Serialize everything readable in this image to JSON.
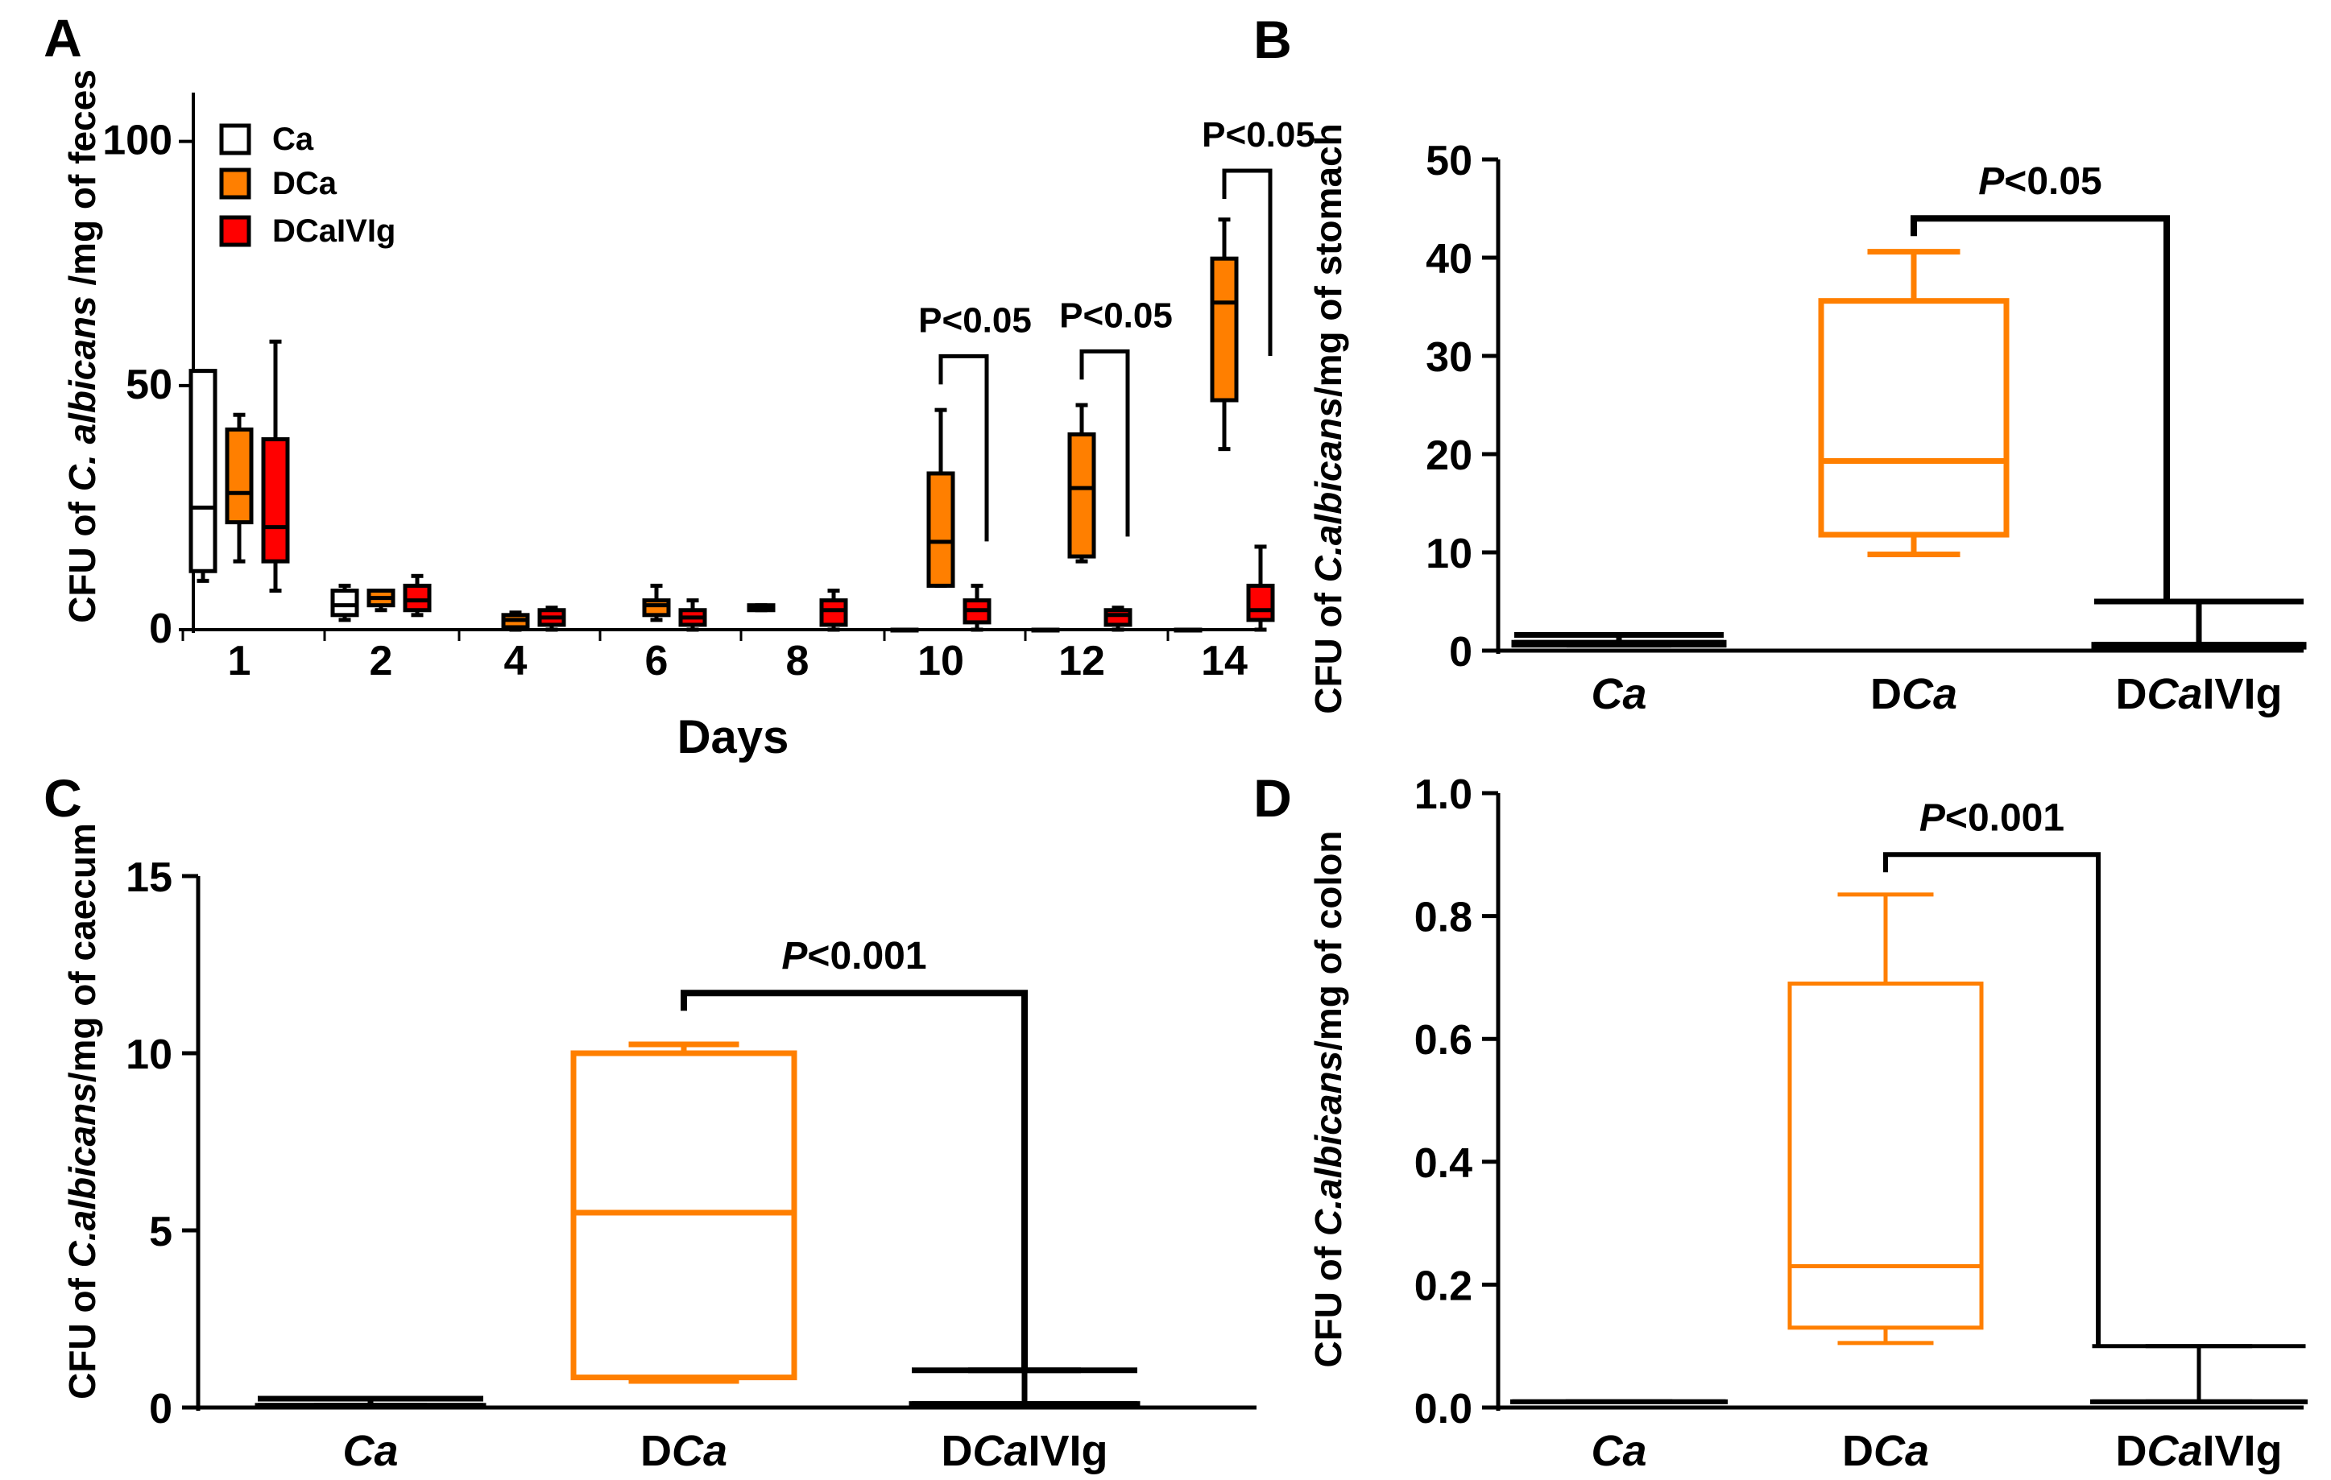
{
  "colors": {
    "ca": "#ffffff",
    "dca": "#ff7f00",
    "dcaivig": "#ff0000",
    "stroke": "#000000",
    "accent": "#ff7f00"
  },
  "chart_data": [
    {
      "panel": "A",
      "type": "box",
      "ylabel_parts": [
        "CFU of ",
        "C. albicans",
        " /mg of feces"
      ],
      "xlabel": "Days",
      "ylim": [
        0,
        110
      ],
      "yticks": [
        0,
        50,
        100
      ],
      "categories": [
        "1",
        "2",
        "4",
        "6",
        "8",
        "10",
        "12",
        "14"
      ],
      "legend": [
        "Ca",
        "DCa",
        "DCaIVIg"
      ],
      "series": [
        {
          "name": "Ca",
          "boxes": [
            {
              "min": 10,
              "q1": 12,
              "median": 25,
              "q3": 53,
              "max": 53
            },
            {
              "min": 2,
              "q1": 3,
              "median": 5,
              "q3": 8,
              "max": 9
            },
            null,
            null,
            {
              "min": 4,
              "q1": 4,
              "median": 4.5,
              "q3": 5,
              "max": 5
            },
            {
              "min": 0,
              "q1": 0,
              "median": 0,
              "q3": 0,
              "max": 0
            },
            {
              "min": 0,
              "q1": 0,
              "median": 0,
              "q3": 0,
              "max": 0
            },
            {
              "min": 0,
              "q1": 0,
              "median": 0,
              "q3": 0,
              "max": 0
            }
          ]
        },
        {
          "name": "DCa",
          "boxes": [
            {
              "min": 14,
              "q1": 22,
              "median": 28,
              "q3": 41,
              "max": 44
            },
            {
              "min": 4,
              "q1": 5,
              "median": 6.5,
              "q3": 8,
              "max": 8
            },
            {
              "min": 0,
              "q1": 0.5,
              "median": 2,
              "q3": 3,
              "max": 3.5
            },
            {
              "min": 2,
              "q1": 3,
              "median": 5,
              "q3": 6,
              "max": 9
            },
            null,
            {
              "min": 9,
              "q1": 9,
              "median": 18,
              "q3": 32,
              "max": 45
            },
            {
              "min": 14,
              "q1": 15,
              "median": 29,
              "q3": 40,
              "max": 46
            },
            {
              "min": 37,
              "q1": 47,
              "median": 67,
              "q3": 76,
              "max": 84
            }
          ]
        },
        {
          "name": "DCaIVIg",
          "boxes": [
            {
              "min": 8,
              "q1": 14,
              "median": 21,
              "q3": 39,
              "max": 59
            },
            {
              "min": 3,
              "q1": 4,
              "median": 6,
              "q3": 9,
              "max": 11
            },
            {
              "min": 0,
              "q1": 1,
              "median": 2.5,
              "q3": 4,
              "max": 4.5
            },
            {
              "min": 0,
              "q1": 1,
              "median": 2.5,
              "q3": 4,
              "max": 6
            },
            {
              "min": 0,
              "q1": 1,
              "median": 4,
              "q3": 6,
              "max": 8
            },
            {
              "min": 0,
              "q1": 1.5,
              "median": 4,
              "q3": 6,
              "max": 9
            },
            {
              "min": 0,
              "q1": 1,
              "median": 3,
              "q3": 4,
              "max": 4.5
            },
            {
              "min": 0,
              "q1": 2,
              "median": 4,
              "q3": 9,
              "max": 17
            }
          ]
        }
      ],
      "annotations": [
        {
          "text": "P<0.05",
          "day": "10",
          "y1": 56,
          "y2": 56
        },
        {
          "text": "P<0.05",
          "day": "12",
          "y1": 57,
          "y2": 57
        },
        {
          "text": "P<0.05",
          "day": "14",
          "y1": 94,
          "y2": 94
        }
      ]
    },
    {
      "panel": "B",
      "type": "box",
      "ylabel_parts": [
        "CFU of ",
        "C.albicans",
        "/mg of stomach"
      ],
      "ylim": [
        0,
        50
      ],
      "yticks": [
        0,
        10,
        20,
        30,
        40,
        50
      ],
      "categories": [
        [
          "",
          "Ca"
        ],
        [
          "D",
          "Ca"
        ],
        [
          "D",
          "Ca",
          "IVIg"
        ]
      ],
      "boxes": [
        {
          "group": "Ca",
          "min": 0.6,
          "q1": 0.6,
          "median": 0.8,
          "q3": 0.8,
          "max": 1.6
        },
        {
          "group": "DCa",
          "min": 9.8,
          "q1": 11.8,
          "median": 19.3,
          "q3": 35.6,
          "max": 40.6
        },
        {
          "group": "DCaIVIg",
          "min": 0.4,
          "q1": 0.4,
          "median": 0.6,
          "q3": 0.6,
          "max": 5
        }
      ],
      "annotation": {
        "p": "P",
        "rest": "<0.05",
        "bracket_y": 44
      }
    },
    {
      "panel": "C",
      "type": "box",
      "ylabel_parts": [
        "CFU of ",
        "C.albicans",
        "/mg of caecum"
      ],
      "ylim": [
        0,
        15
      ],
      "yticks": [
        0,
        5,
        10,
        15
      ],
      "categories": [
        [
          "",
          "Ca"
        ],
        [
          "D",
          "Ca"
        ],
        [
          "D",
          "Ca",
          "IVIg"
        ]
      ],
      "boxes": [
        {
          "group": "Ca",
          "min": 0.05,
          "q1": 0.05,
          "median": 0.05,
          "q3": 0.05,
          "max": 0.25
        },
        {
          "group": "DCa",
          "min": 0.75,
          "q1": 0.85,
          "median": 5.5,
          "q3": 10.0,
          "max": 10.25
        },
        {
          "group": "DCaIVIg",
          "min": 0.05,
          "q1": 0.05,
          "median": 0.1,
          "q3": 0.1,
          "max": 1.05
        }
      ],
      "annotation": {
        "p": "P",
        "rest": "<0.001",
        "bracket_y": 11.7
      }
    },
    {
      "panel": "D",
      "type": "box",
      "ylabel_parts": [
        "CFU of ",
        "C.albicans",
        "/mg of colon"
      ],
      "ylim": [
        0,
        1.0
      ],
      "yticks": [
        "0.0",
        "0.2",
        "0.4",
        "0.6",
        "0.8",
        "1.0"
      ],
      "categories": [
        [
          "",
          "Ca"
        ],
        [
          "D",
          "Ca"
        ],
        [
          "D",
          "Ca",
          "IVIg"
        ]
      ],
      "boxes": [
        {
          "group": "Ca",
          "min": 0.01,
          "q1": 0.01,
          "median": 0.01,
          "q3": 0.01,
          "max": 0.01
        },
        {
          "group": "DCa",
          "min": 0.105,
          "q1": 0.13,
          "median": 0.23,
          "q3": 0.69,
          "max": 0.835
        },
        {
          "group": "DCaIVIg",
          "min": 0.01,
          "q1": 0.01,
          "median": 0.01,
          "q3": 0.01,
          "max": 0.1
        }
      ],
      "annotation": {
        "p": "P",
        "rest": "<0.001",
        "bracket_y": 0.9
      }
    }
  ]
}
